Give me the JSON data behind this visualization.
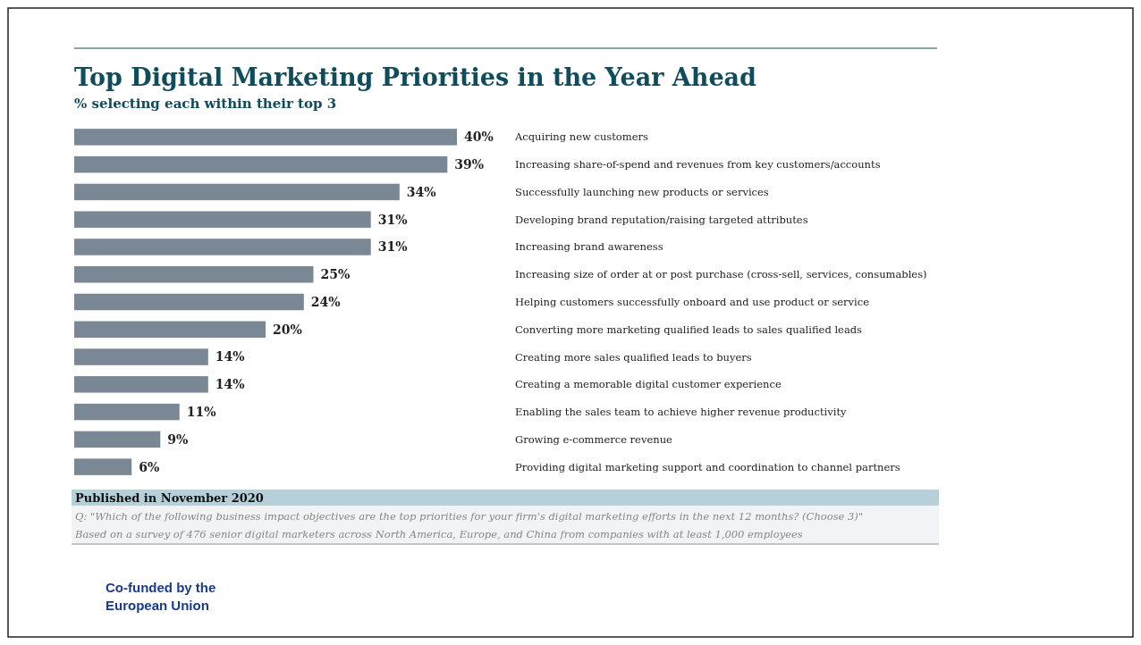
{
  "chart_data": {
    "type": "bar",
    "orientation": "horizontal",
    "title": "Top Digital Marketing Priorities in the Year Ahead",
    "subtitle": "% selecting each within their top 3",
    "categories": [
      "Acquiring new customers",
      "Increasing share-of-spend and revenues from key customers/accounts",
      "Successfully launching new products or services",
      "Developing brand reputation/raising targeted attributes",
      "Increasing brand awareness",
      "Increasing size of order at or post purchase (cross-sell, services, consumables)",
      "Helping customers successfully onboard and use product or service",
      "Converting more marketing qualified leads to sales qualified leads",
      "Creating more sales qualified leads to buyers",
      "Creating a memorable digital customer experience",
      "Enabling the sales team to achieve higher revenue productivity",
      "Growing e-commerce revenue",
      "Providing digital marketing support and coordination to channel partners"
    ],
    "values": [
      40,
      39,
      34,
      31,
      31,
      25,
      24,
      20,
      14,
      14,
      11,
      9,
      6
    ],
    "value_labels": [
      "40%",
      "39%",
      "34%",
      "31%",
      "31%",
      "25%",
      "24%",
      "20%",
      "14%",
      "14%",
      "11%",
      "9%",
      "6%"
    ],
    "color": "#7a8794",
    "annotations": [
      "Published in November 2020",
      "Q: \"Which of the following business impact objectives are the top priorities for your firm's digital marketing efforts in the next 12 months? (Choose 3)\"",
      "Based on a survey of 476 senior digital marketers across North America, Europe, and China from companies with at least 1,000 employees",
      "Co-funded by the European Union"
    ]
  }
}
